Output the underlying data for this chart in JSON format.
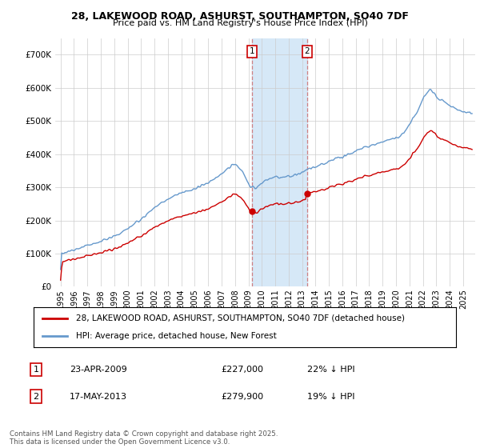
{
  "title_line1": "28, LAKEWOOD ROAD, ASHURST, SOUTHAMPTON, SO40 7DF",
  "title_line2": "Price paid vs. HM Land Registry's House Price Index (HPI)",
  "legend_label1": "28, LAKEWOOD ROAD, ASHURST, SOUTHAMPTON, SO40 7DF (detached house)",
  "legend_label2": "HPI: Average price, detached house, New Forest",
  "footnote": "Contains HM Land Registry data © Crown copyright and database right 2025.\nThis data is licensed under the Open Government Licence v3.0.",
  "marker1_date": "23-APR-2009",
  "marker1_price": "£227,000",
  "marker1_hpi": "22% ↓ HPI",
  "marker2_date": "17-MAY-2013",
  "marker2_price": "£279,900",
  "marker2_hpi": "19% ↓ HPI",
  "color_red": "#cc0000",
  "color_blue": "#6699cc",
  "color_shading": "#d6e8f7",
  "ylim_min": 0,
  "ylim_max": 750000,
  "background": "#ffffff",
  "grid_color": "#cccccc",
  "sale1_year": 2009.29,
  "sale1_price": 227000,
  "sale2_year": 2013.37,
  "sale2_price": 279900
}
